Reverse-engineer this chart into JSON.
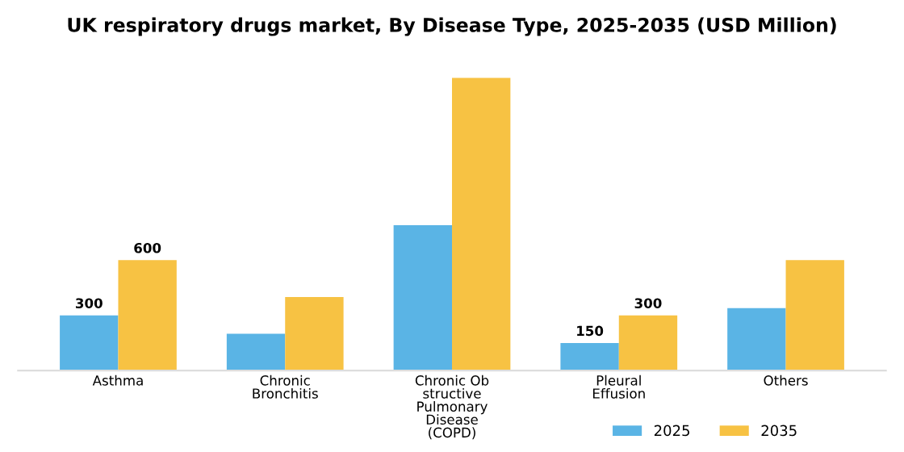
{
  "chart_data": {
    "type": "bar",
    "title": "UK respiratory drugs market, By Disease Type, 2025-2035 (USD Million)",
    "categories": [
      "Asthma",
      "Chronic\nBronchitis",
      "Chronic Ob\nstructive\nPulmonary\nDisease\n(COPD)",
      "Pleural\nEffusion",
      "Others"
    ],
    "series": [
      {
        "name": "2025",
        "color": "#5ab4e5",
        "values": [
          300,
          200,
          790,
          150,
          340
        ],
        "value_labels": [
          "300",
          null,
          null,
          "150",
          null
        ]
      },
      {
        "name": "2035",
        "color": "#f7c243",
        "values": [
          600,
          400,
          1590,
          300,
          600
        ],
        "value_labels": [
          "600",
          null,
          null,
          "300",
          null
        ]
      }
    ],
    "legend": "bottom",
    "grid": false
  }
}
